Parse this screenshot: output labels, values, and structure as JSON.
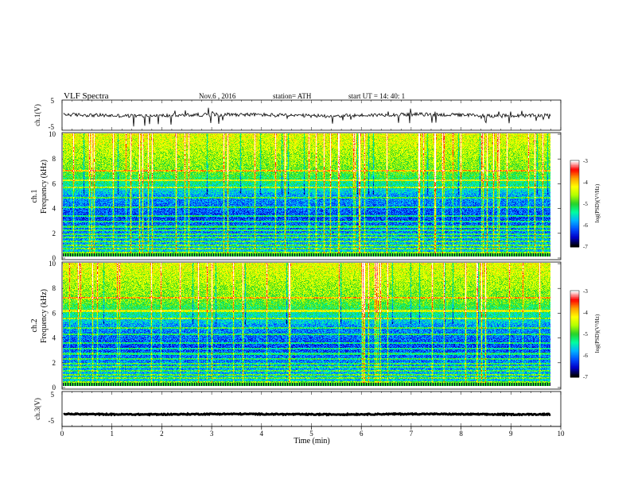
{
  "header": {
    "title": "VLF  Spectra",
    "date": "Nov.6  , 2016",
    "station": "station= ATH",
    "start": "start  UT  =    14: 40: 1"
  },
  "chart_data": [
    {
      "type": "line",
      "ylabel": "ch.1(V)",
      "ylim": [
        -5,
        5
      ],
      "yticks": [
        "5",
        "-5"
      ],
      "baseline": 0,
      "noise": 0.6,
      "spike_rate": 0.06,
      "spike_amp": 2.8
    },
    {
      "type": "heatmap",
      "ylabel": "Frequency  (kHz)",
      "channel_label": "ch.1",
      "ylim": [
        0,
        10
      ],
      "yticks": [
        "0",
        "2",
        "4",
        "6",
        "8",
        "10"
      ],
      "colorbar": {
        "label": "log(PSD)(V²/Hz)",
        "range": [
          -7,
          -3
        ],
        "ticks": [
          "-3",
          "-4",
          "-5",
          "-6",
          "-7"
        ],
        "colors": [
          "#000000",
          "#0000c8",
          "#0050ff",
          "#00b4ff",
          "#00ffa0",
          "#28d228",
          "#b4ff00",
          "#ffff00",
          "#ffa000",
          "#ff0000",
          "#ffffff"
        ]
      },
      "bands_khz": [
        0.3,
        0.6,
        0.9,
        1.2,
        1.5,
        1.8,
        2.1,
        2.4,
        2.8,
        3.3,
        4.0,
        4.8,
        5.6,
        6.2,
        7.0
      ]
    },
    {
      "type": "heatmap",
      "ylabel": "Frequency  (kHz)",
      "channel_label": "ch.2",
      "ylim": [
        0,
        10
      ],
      "yticks": [
        "0",
        "2",
        "4",
        "6",
        "8",
        "10"
      ],
      "colorbar": {
        "label": "log(PSD)(V²/Hz)",
        "range": [
          -7,
          -3
        ],
        "ticks": [
          "-3",
          "-4",
          "-5",
          "-6",
          "-7"
        ],
        "colors": [
          "#000000",
          "#0000c8",
          "#0050ff",
          "#00b4ff",
          "#00ffa0",
          "#28d228",
          "#b4ff00",
          "#ffff00",
          "#ffa000",
          "#ff0000",
          "#ffffff"
        ]
      },
      "bands_khz": [
        0.3,
        0.6,
        0.9,
        1.2,
        1.5,
        1.8,
        2.2,
        2.6,
        3.0,
        3.5,
        4.2,
        4.7,
        5.5,
        6.1,
        7.2
      ]
    },
    {
      "type": "line",
      "ylabel": "ch.3(V)",
      "ylim": [
        -5,
        5
      ],
      "yticks": [
        "5",
        "-5"
      ],
      "baseline": -1.5,
      "noise": 0.15,
      "spike_rate": 0,
      "spike_amp": 0
    }
  ],
  "xaxis": {
    "label": "Time  (min)",
    "xlim": [
      0,
      10
    ],
    "ticks": [
      "0",
      "1",
      "2",
      "3",
      "4",
      "5",
      "6",
      "7",
      "8",
      "9",
      "10"
    ],
    "data_end": 9.8
  }
}
